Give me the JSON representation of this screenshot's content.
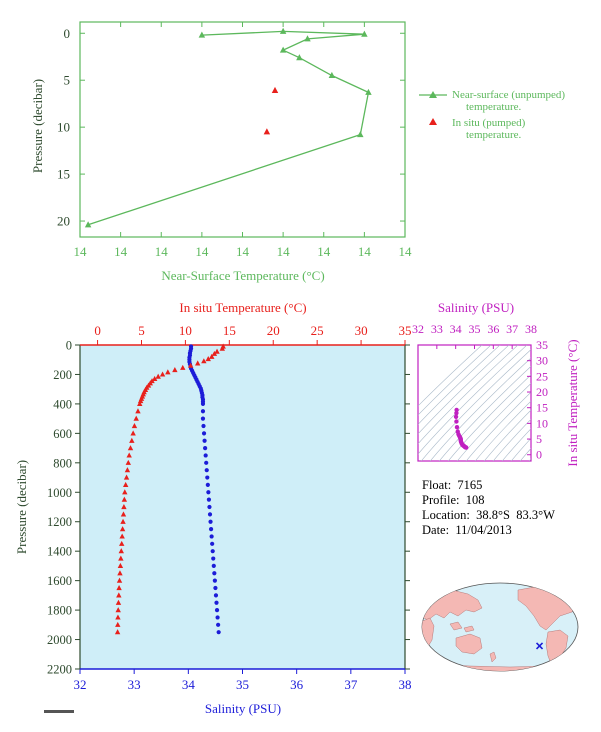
{
  "colors": {
    "green": "#5cb85c",
    "red": "#e8201c",
    "blue": "#1c1cd8",
    "magenta": "#c020c0",
    "axis_text": "#2e4a2e",
    "panel_bg": "#cfeef8",
    "land": "#f4b8b4",
    "ocean": "#d8f0f8",
    "float_marker": "#1c1cd8"
  },
  "chart_data": [
    {
      "id": "near-surface",
      "type": "scatter",
      "xlabel": "Near-Surface Temperature (°C)",
      "ylabel": "Pressure (decibar)",
      "x_tick_labels": [
        "14",
        "14",
        "14",
        "14",
        "14",
        "14",
        "14",
        "14",
        "14"
      ],
      "y_ticks": [
        0,
        5,
        10,
        15,
        20
      ],
      "ylim": [
        21.7,
        -1.2
      ],
      "xlim": [
        13.8,
        14.2
      ],
      "y_inverted": true,
      "series": [
        {
          "name": "Near-surface (unpumped) temperature.",
          "marker": "triangle",
          "connected": true,
          "points": [
            {
              "x": 13.95,
              "y": 0.2
            },
            {
              "x": 14.05,
              "y": -0.2
            },
            {
              "x": 14.15,
              "y": 0.1
            },
            {
              "x": 14.08,
              "y": 0.6
            },
            {
              "x": 14.05,
              "y": 1.8
            },
            {
              "x": 14.07,
              "y": 2.6
            },
            {
              "x": 14.11,
              "y": 4.5
            },
            {
              "x": 14.155,
              "y": 6.3
            },
            {
              "x": 14.145,
              "y": 10.8
            },
            {
              "x": 13.81,
              "y": 20.4
            }
          ]
        },
        {
          "name": "In situ (pumped) temperature.",
          "marker": "triangle",
          "connected": false,
          "points": [
            {
              "x": 14.04,
              "y": 6.1
            },
            {
              "x": 14.03,
              "y": 10.5
            }
          ]
        }
      ],
      "legend_position": "right"
    },
    {
      "id": "profile",
      "type": "scatter",
      "ylabel": "Pressure (decibar)",
      "y_ticks": [
        0,
        200,
        400,
        600,
        800,
        1000,
        1200,
        1400,
        1600,
        1800,
        2000,
        2200
      ],
      "ylim": [
        2200,
        0
      ],
      "y_inverted": true,
      "x_top": {
        "label": "In situ Temperature (°C)",
        "ticks": [
          0,
          5,
          10,
          15,
          20,
          25,
          30,
          35
        ],
        "lim": [
          -2,
          35
        ]
      },
      "x_bottom": {
        "label": "Salinity (PSU)",
        "ticks": [
          32,
          33,
          34,
          35,
          36,
          37,
          38
        ],
        "lim": [
          32,
          38
        ]
      },
      "series": [
        {
          "name": "In situ Temperature",
          "axis": "top",
          "marker": "triangle",
          "points": [
            {
              "x": 14.3,
              "y": 10
            },
            {
              "x": 14.2,
              "y": 25
            },
            {
              "x": 13.6,
              "y": 45
            },
            {
              "x": 13.3,
              "y": 60
            },
            {
              "x": 13.0,
              "y": 80
            },
            {
              "x": 12.6,
              "y": 95
            },
            {
              "x": 12.1,
              "y": 110
            },
            {
              "x": 11.4,
              "y": 125
            },
            {
              "x": 10.6,
              "y": 140
            },
            {
              "x": 9.7,
              "y": 155
            },
            {
              "x": 8.8,
              "y": 170
            },
            {
              "x": 8.0,
              "y": 185
            },
            {
              "x": 7.4,
              "y": 200
            },
            {
              "x": 6.9,
              "y": 215
            },
            {
              "x": 6.5,
              "y": 230
            },
            {
              "x": 6.2,
              "y": 245
            },
            {
              "x": 6.0,
              "y": 260
            },
            {
              "x": 5.8,
              "y": 275
            },
            {
              "x": 5.6,
              "y": 290
            },
            {
              "x": 5.45,
              "y": 305
            },
            {
              "x": 5.3,
              "y": 320
            },
            {
              "x": 5.2,
              "y": 335
            },
            {
              "x": 5.1,
              "y": 350
            },
            {
              "x": 5.0,
              "y": 365
            },
            {
              "x": 4.9,
              "y": 380
            },
            {
              "x": 4.8,
              "y": 400
            },
            {
              "x": 4.6,
              "y": 450
            },
            {
              "x": 4.4,
              "y": 500
            },
            {
              "x": 4.2,
              "y": 550
            },
            {
              "x": 4.05,
              "y": 600
            },
            {
              "x": 3.9,
              "y": 650
            },
            {
              "x": 3.75,
              "y": 700
            },
            {
              "x": 3.6,
              "y": 750
            },
            {
              "x": 3.5,
              "y": 800
            },
            {
              "x": 3.4,
              "y": 850
            },
            {
              "x": 3.3,
              "y": 900
            },
            {
              "x": 3.2,
              "y": 950
            },
            {
              "x": 3.1,
              "y": 1000
            },
            {
              "x": 3.05,
              "y": 1050
            },
            {
              "x": 3.0,
              "y": 1100
            },
            {
              "x": 2.95,
              "y": 1150
            },
            {
              "x": 2.9,
              "y": 1200
            },
            {
              "x": 2.85,
              "y": 1250
            },
            {
              "x": 2.8,
              "y": 1300
            },
            {
              "x": 2.75,
              "y": 1350
            },
            {
              "x": 2.7,
              "y": 1400
            },
            {
              "x": 2.65,
              "y": 1450
            },
            {
              "x": 2.6,
              "y": 1500
            },
            {
              "x": 2.55,
              "y": 1550
            },
            {
              "x": 2.5,
              "y": 1600
            },
            {
              "x": 2.45,
              "y": 1650
            },
            {
              "x": 2.42,
              "y": 1700
            },
            {
              "x": 2.38,
              "y": 1750
            },
            {
              "x": 2.35,
              "y": 1800
            },
            {
              "x": 2.32,
              "y": 1850
            },
            {
              "x": 2.3,
              "y": 1900
            },
            {
              "x": 2.28,
              "y": 1950
            }
          ]
        },
        {
          "name": "Salinity",
          "axis": "bottom",
          "marker": "circle",
          "points": [
            {
              "x": 34.05,
              "y": 10
            },
            {
              "x": 34.05,
              "y": 25
            },
            {
              "x": 34.04,
              "y": 40
            },
            {
              "x": 34.03,
              "y": 55
            },
            {
              "x": 34.03,
              "y": 70
            },
            {
              "x": 34.02,
              "y": 85
            },
            {
              "x": 34.02,
              "y": 100
            },
            {
              "x": 34.02,
              "y": 115
            },
            {
              "x": 34.03,
              "y": 130
            },
            {
              "x": 34.04,
              "y": 145
            },
            {
              "x": 34.05,
              "y": 160
            },
            {
              "x": 34.07,
              "y": 175
            },
            {
              "x": 34.09,
              "y": 190
            },
            {
              "x": 34.11,
              "y": 205
            },
            {
              "x": 34.13,
              "y": 220
            },
            {
              "x": 34.15,
              "y": 235
            },
            {
              "x": 34.17,
              "y": 250
            },
            {
              "x": 34.19,
              "y": 265
            },
            {
              "x": 34.21,
              "y": 280
            },
            {
              "x": 34.23,
              "y": 295
            },
            {
              "x": 34.24,
              "y": 310
            },
            {
              "x": 34.25,
              "y": 325
            },
            {
              "x": 34.26,
              "y": 340
            },
            {
              "x": 34.26,
              "y": 355
            },
            {
              "x": 34.27,
              "y": 370
            },
            {
              "x": 34.27,
              "y": 385
            },
            {
              "x": 34.27,
              "y": 400
            },
            {
              "x": 34.27,
              "y": 450
            },
            {
              "x": 34.27,
              "y": 500
            },
            {
              "x": 34.28,
              "y": 550
            },
            {
              "x": 34.29,
              "y": 600
            },
            {
              "x": 34.3,
              "y": 650
            },
            {
              "x": 34.31,
              "y": 700
            },
            {
              "x": 34.32,
              "y": 750
            },
            {
              "x": 34.33,
              "y": 800
            },
            {
              "x": 34.34,
              "y": 850
            },
            {
              "x": 34.35,
              "y": 900
            },
            {
              "x": 34.36,
              "y": 950
            },
            {
              "x": 34.37,
              "y": 1000
            },
            {
              "x": 34.38,
              "y": 1050
            },
            {
              "x": 34.39,
              "y": 1100
            },
            {
              "x": 34.4,
              "y": 1150
            },
            {
              "x": 34.41,
              "y": 1200
            },
            {
              "x": 34.42,
              "y": 1250
            },
            {
              "x": 34.43,
              "y": 1300
            },
            {
              "x": 34.44,
              "y": 1350
            },
            {
              "x": 34.45,
              "y": 1400
            },
            {
              "x": 34.46,
              "y": 1450
            },
            {
              "x": 34.47,
              "y": 1500
            },
            {
              "x": 34.48,
              "y": 1550
            },
            {
              "x": 34.49,
              "y": 1600
            },
            {
              "x": 34.5,
              "y": 1650
            },
            {
              "x": 34.51,
              "y": 1700
            },
            {
              "x": 34.52,
              "y": 1750
            },
            {
              "x": 34.53,
              "y": 1800
            },
            {
              "x": 34.54,
              "y": 1850
            },
            {
              "x": 34.55,
              "y": 1900
            },
            {
              "x": 34.56,
              "y": 1950
            }
          ]
        }
      ]
    },
    {
      "id": "t-s-diagram",
      "type": "scatter",
      "x_top": {
        "label": "Salinity (PSU)",
        "ticks": [
          32,
          33,
          34,
          35,
          36,
          37,
          38
        ],
        "lim": [
          32,
          38
        ]
      },
      "y_right": {
        "label": "In situ Temperature (°C)",
        "ticks": [
          0,
          5,
          10,
          15,
          20,
          25,
          30,
          35
        ],
        "lim": [
          -2,
          35
        ]
      },
      "background": "density contours",
      "series": [
        {
          "name": "T-S profile",
          "marker": "circle",
          "points": [
            {
              "x": 34.05,
              "y": 14.3
            },
            {
              "x": 34.04,
              "y": 13.3
            },
            {
              "x": 34.02,
              "y": 12.1
            },
            {
              "x": 34.04,
              "y": 10.6
            },
            {
              "x": 34.07,
              "y": 8.8
            },
            {
              "x": 34.11,
              "y": 7.4
            },
            {
              "x": 34.15,
              "y": 6.5
            },
            {
              "x": 34.19,
              "y": 6.0
            },
            {
              "x": 34.23,
              "y": 5.6
            },
            {
              "x": 34.25,
              "y": 5.3
            },
            {
              "x": 34.26,
              "y": 5.1
            },
            {
              "x": 34.27,
              "y": 4.9
            },
            {
              "x": 34.27,
              "y": 4.6
            },
            {
              "x": 34.28,
              "y": 4.2
            },
            {
              "x": 34.3,
              "y": 3.9
            },
            {
              "x": 34.32,
              "y": 3.6
            },
            {
              "x": 34.34,
              "y": 3.4
            },
            {
              "x": 34.36,
              "y": 3.2
            },
            {
              "x": 34.38,
              "y": 3.05
            },
            {
              "x": 34.4,
              "y": 2.95
            },
            {
              "x": 34.42,
              "y": 2.85
            },
            {
              "x": 34.44,
              "y": 2.75
            },
            {
              "x": 34.46,
              "y": 2.65
            },
            {
              "x": 34.48,
              "y": 2.55
            },
            {
              "x": 34.5,
              "y": 2.45
            },
            {
              "x": 34.52,
              "y": 2.38
            },
            {
              "x": 34.54,
              "y": 2.32
            },
            {
              "x": 34.56,
              "y": 2.28
            }
          ]
        }
      ]
    }
  ],
  "info": {
    "float": "Float:  7165",
    "profile": "Profile:  108",
    "location": "Location:  38.8°S  83.3°W",
    "date": "Date:  11/04/2013"
  },
  "map": {
    "float_lat": -38.8,
    "float_lon": -83.3,
    "central_lon": 180,
    "projection": "Robinson-like oval"
  }
}
